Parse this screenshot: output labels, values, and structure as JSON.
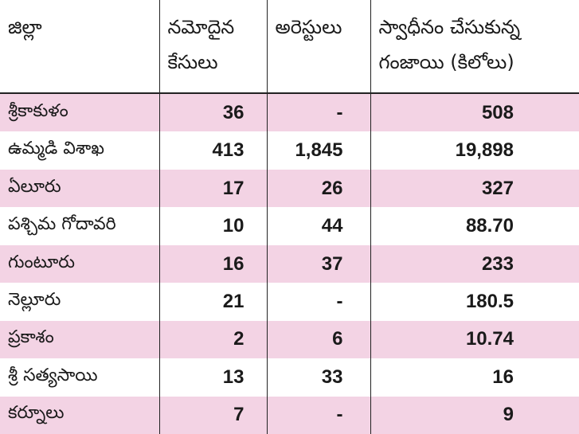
{
  "table": {
    "headers": [
      "జిల్లా",
      "నమోదైన కేసులు",
      "అరెస్టులు",
      "స్వాధీనం చేసుకున్న గంజాయి (కిలోలు)"
    ],
    "rows": [
      {
        "district": "శ్రీకాకుళం",
        "cases": "36",
        "arrests": "-",
        "ganja_kg": "508"
      },
      {
        "district": "ఉమ్మడి విశాఖ",
        "cases": "413",
        "arrests": "1,845",
        "ganja_kg": "19,898"
      },
      {
        "district": "ఏలూరు",
        "cases": "17",
        "arrests": "26",
        "ganja_kg": "327"
      },
      {
        "district": "పశ్చిమ గోదావరి",
        "cases": "10",
        "arrests": "44",
        "ganja_kg": "88.70"
      },
      {
        "district": "గుంటూరు",
        "cases": "16",
        "arrests": "37",
        "ganja_kg": "233"
      },
      {
        "district": "నెల్లూరు",
        "cases": "21",
        "arrests": "-",
        "ganja_kg": "180.5"
      },
      {
        "district": "ప్రకాశం",
        "cases": "2",
        "arrests": "6",
        "ganja_kg": "10.74"
      },
      {
        "district": "శ్రీ సత్యసాయి",
        "cases": "13",
        "arrests": "33",
        "ganja_kg": "16"
      },
      {
        "district": "కర్నూలు",
        "cases": "7",
        "arrests": "-",
        "ganja_kg": "9"
      }
    ]
  },
  "colors": {
    "stripe": "#f3d3e4",
    "background": "#ffffff",
    "rule": "#222222"
  }
}
